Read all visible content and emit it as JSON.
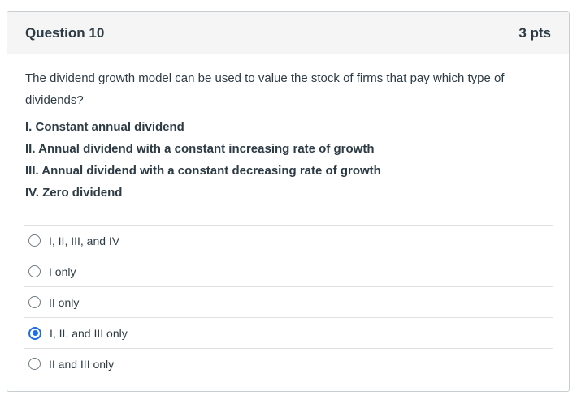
{
  "header": {
    "title": "Question 10",
    "points": "3 pts"
  },
  "question": {
    "prompt": "The dividend growth model can be used to value the stock of firms that pay which type of dividends?",
    "statements": [
      "I. Constant annual dividend",
      "II. Annual dividend with a constant increasing rate of growth",
      "III. Annual dividend with a constant decreasing rate of growth",
      "IV. Zero dividend"
    ]
  },
  "options": [
    {
      "label": "I, II, III, and IV",
      "selected": false
    },
    {
      "label": "I only",
      "selected": false
    },
    {
      "label": "II only",
      "selected": false
    },
    {
      "label": "I, II, and III only",
      "selected": true
    },
    {
      "label": "II and III only",
      "selected": false
    }
  ],
  "colors": {
    "accent_blue": "#1f6ce8",
    "text": "#2d3b45",
    "card_border": "#c7cdd1",
    "header_background": "#f5f5f5",
    "divider": "#e1e1e1",
    "radio_border": "#6e7b83"
  }
}
